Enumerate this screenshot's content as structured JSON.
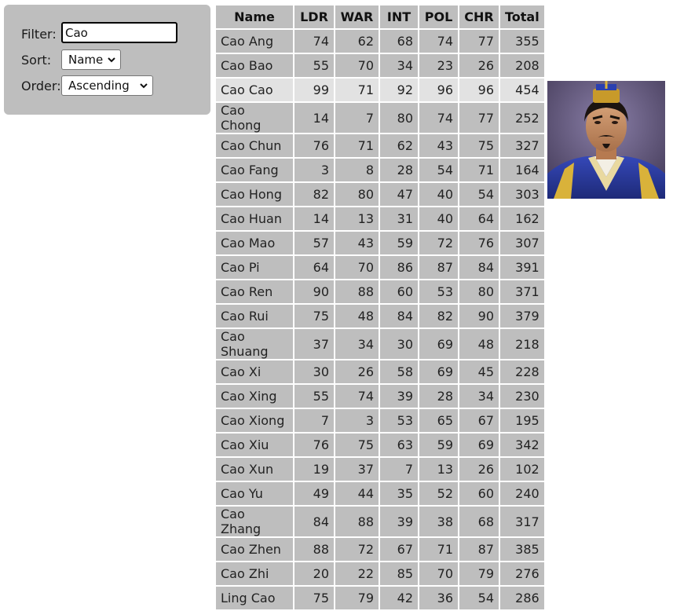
{
  "filter": {
    "label": "Filter:",
    "value": "Cao"
  },
  "sort": {
    "label": "Sort:",
    "selected": "Name"
  },
  "order": {
    "label": "Order:",
    "selected": "Ascending"
  },
  "table": {
    "columns": [
      "Name",
      "LDR",
      "WAR",
      "INT",
      "POL",
      "CHR",
      "Total"
    ],
    "highlighted_row": 2,
    "rows": [
      [
        "Cao Ang",
        "74",
        "62",
        "68",
        "74",
        "77",
        "355"
      ],
      [
        "Cao Bao",
        "55",
        "70",
        "34",
        "23",
        "26",
        "208"
      ],
      [
        "Cao Cao",
        "99",
        "71",
        "92",
        "96",
        "96",
        "454"
      ],
      [
        "Cao Chong",
        "14",
        "7",
        "80",
        "74",
        "77",
        "252"
      ],
      [
        "Cao Chun",
        "76",
        "71",
        "62",
        "43",
        "75",
        "327"
      ],
      [
        "Cao Fang",
        "3",
        "8",
        "28",
        "54",
        "71",
        "164"
      ],
      [
        "Cao Hong",
        "82",
        "80",
        "47",
        "40",
        "54",
        "303"
      ],
      [
        "Cao Huan",
        "14",
        "13",
        "31",
        "40",
        "64",
        "162"
      ],
      [
        "Cao Mao",
        "57",
        "43",
        "59",
        "72",
        "76",
        "307"
      ],
      [
        "Cao Pi",
        "64",
        "70",
        "86",
        "87",
        "84",
        "391"
      ],
      [
        "Cao Ren",
        "90",
        "88",
        "60",
        "53",
        "80",
        "371"
      ],
      [
        "Cao Rui",
        "75",
        "48",
        "84",
        "82",
        "90",
        "379"
      ],
      [
        "Cao Shuang",
        "37",
        "34",
        "30",
        "69",
        "48",
        "218"
      ],
      [
        "Cao Xi",
        "30",
        "26",
        "58",
        "69",
        "45",
        "228"
      ],
      [
        "Cao Xing",
        "55",
        "74",
        "39",
        "28",
        "34",
        "230"
      ],
      [
        "Cao Xiong",
        "7",
        "3",
        "53",
        "65",
        "67",
        "195"
      ],
      [
        "Cao Xiu",
        "76",
        "75",
        "63",
        "59",
        "69",
        "342"
      ],
      [
        "Cao Xun",
        "19",
        "37",
        "7",
        "13",
        "26",
        "102"
      ],
      [
        "Cao Yu",
        "49",
        "44",
        "35",
        "52",
        "60",
        "240"
      ],
      [
        "Cao Zhang",
        "84",
        "88",
        "39",
        "38",
        "68",
        "317"
      ],
      [
        "Cao Zhen",
        "88",
        "72",
        "67",
        "71",
        "87",
        "385"
      ],
      [
        "Cao Zhi",
        "20",
        "22",
        "85",
        "70",
        "79",
        "276"
      ],
      [
        "Ling Cao",
        "75",
        "79",
        "42",
        "36",
        "54",
        "286"
      ]
    ]
  },
  "portrait": {
    "icon": "character-portrait-icon"
  },
  "colors": {
    "panel_bg": "#bebebe",
    "cell_bg": "#bebebe",
    "highlight_bg": "#e2e2e2"
  }
}
